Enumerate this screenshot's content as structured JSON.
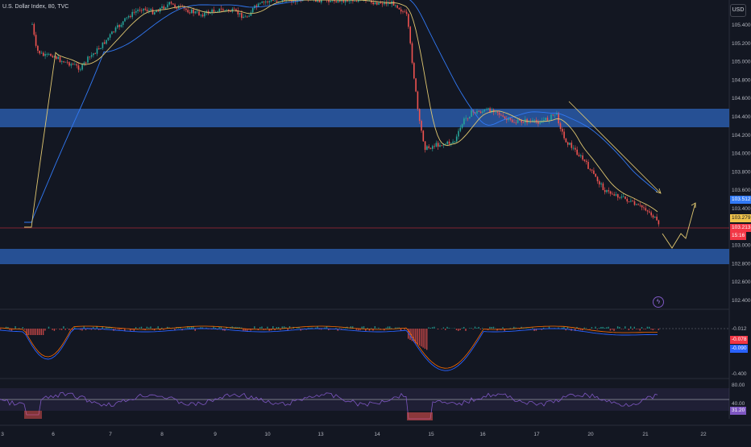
{
  "header": {
    "title": "U.S. Dollar Index, 80, TVC",
    "currency_button": "USD"
  },
  "price_axis": {
    "ticks": [
      "105.400",
      "105.200",
      "105.000",
      "104.800",
      "104.600",
      "104.400",
      "104.200",
      "104.000",
      "103.800",
      "103.600",
      "103.400",
      "103.200",
      "103.000",
      "102.800",
      "102.600",
      "102.400"
    ]
  },
  "price_tags": {
    "ma_slow": "103.512",
    "ma_fast": "103.279",
    "last": "103.213",
    "countdown": "15:16"
  },
  "macd_axis": {
    "ticks": [
      "-0.400"
    ]
  },
  "macd_tags": {
    "signal": "-0.012",
    "macd": "-0.078",
    "hist": "-0.090"
  },
  "rsi_axis": {
    "ticks": [
      "80.00"
    ],
    "top_cut": "40.00"
  },
  "rsi_tags": {
    "value": "31.20"
  },
  "time_axis": {
    "labels": [
      "3",
      "6",
      "7",
      "8",
      "9",
      "10",
      "13",
      "14",
      "15",
      "16",
      "17",
      "20",
      "21",
      "22"
    ]
  },
  "colors": {
    "up": "#26a69a",
    "down": "#ef5350",
    "zone": "#2a5aa8",
    "ma_slow": "#3179f5",
    "ma_fast": "#e0c770",
    "rsi": "#7e57c2",
    "last": "#f23645"
  },
  "icons": {
    "alert": "lightning-icon"
  }
}
